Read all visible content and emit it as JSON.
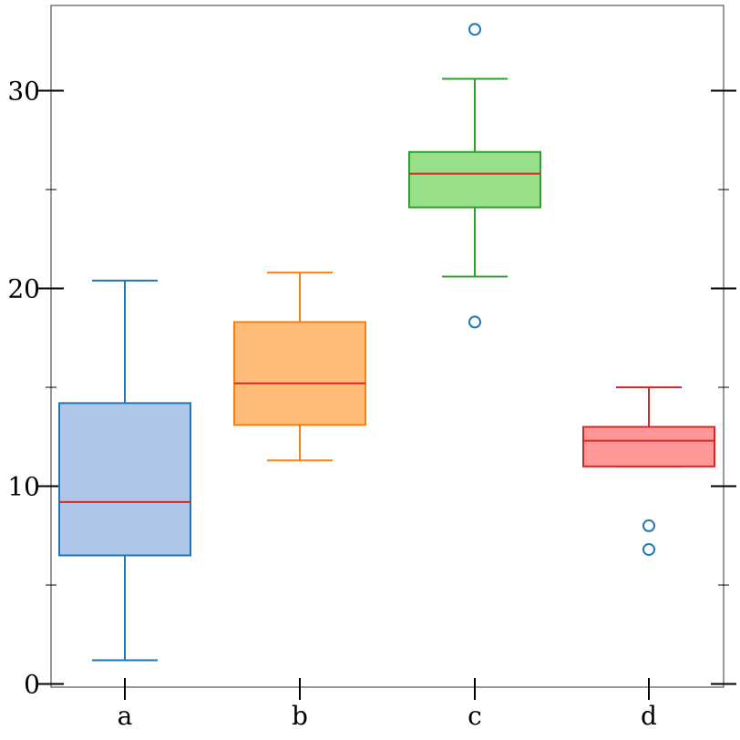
{
  "chart_data": {
    "type": "box",
    "categories": [
      "a",
      "b",
      "c",
      "d"
    ],
    "ylim": [
      0,
      34
    ],
    "y_ticks_major": [
      0,
      10,
      20,
      30
    ],
    "y_ticks_minor": [
      5,
      15,
      25
    ],
    "grid": false,
    "boxes": [
      {
        "category": "a",
        "whisker_low": 1.2,
        "q1": 6.5,
        "median": 9.2,
        "q3": 14.2,
        "whisker_high": 20.4,
        "outliers": [],
        "edge_color": "#1f77b4",
        "fill_color": "#aec7e8"
      },
      {
        "category": "b",
        "whisker_low": 11.3,
        "q1": 13.1,
        "median": 15.2,
        "q3": 18.3,
        "whisker_high": 20.8,
        "outliers": [],
        "edge_color": "#ff7f0e",
        "fill_color": "#ffbb78"
      },
      {
        "category": "c",
        "whisker_low": 20.6,
        "q1": 24.1,
        "median": 25.8,
        "q3": 26.9,
        "whisker_high": 30.6,
        "outliers": [
          33.1,
          18.3
        ],
        "edge_color": "#2ca02c",
        "fill_color": "#98df8a"
      },
      {
        "category": "d",
        "whisker_low": 11.0,
        "q1": 11.0,
        "median": 12.3,
        "q3": 13.0,
        "whisker_high": 15.0,
        "outliers": [
          8.0,
          6.8
        ],
        "edge_color": "#d62728",
        "fill_color": "#ff9896"
      }
    ],
    "median_color": "#d62728",
    "outlier_color": "#1f77b4"
  }
}
